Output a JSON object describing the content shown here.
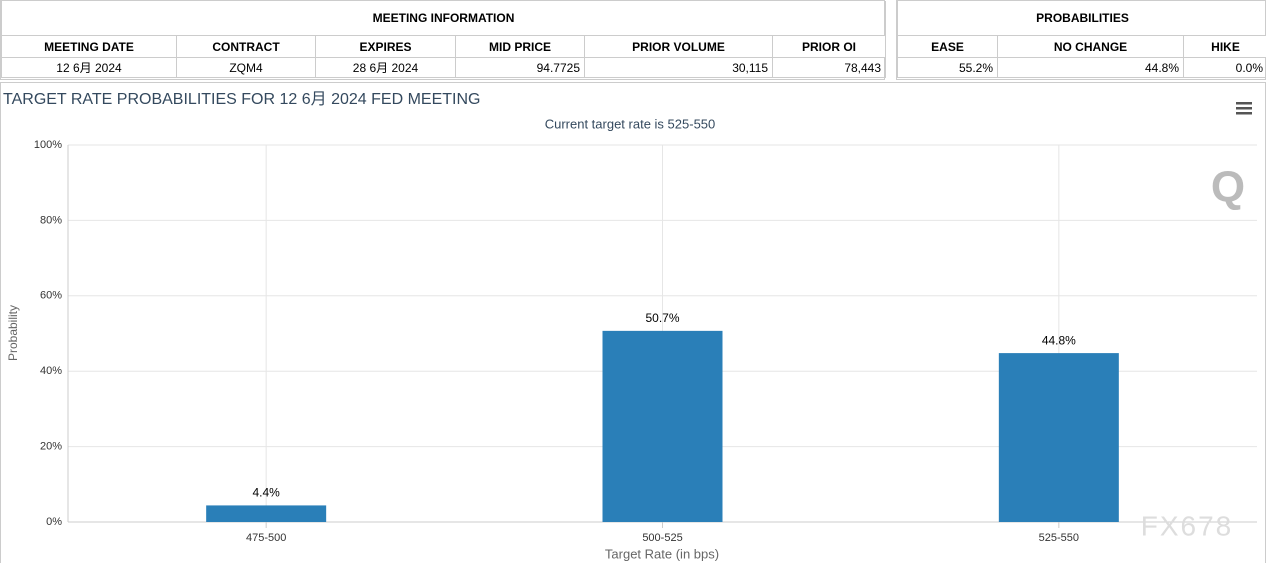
{
  "meeting_info": {
    "title": "MEETING INFORMATION",
    "headers": [
      "MEETING DATE",
      "CONTRACT",
      "EXPIRES",
      "MID PRICE",
      "PRIOR VOLUME",
      "PRIOR OI"
    ],
    "row": [
      "12 6月 2024",
      "ZQM4",
      "28 6月 2024",
      "94.7725",
      "30,115",
      "78,443"
    ]
  },
  "probabilities": {
    "title": "PROBABILITIES",
    "headers": [
      "EASE",
      "NO CHANGE",
      "HIKE"
    ],
    "row": [
      "55.2%",
      "44.8%",
      "0.0%"
    ]
  },
  "chart_data": {
    "type": "bar",
    "title": "TARGET RATE PROBABILITIES FOR 12 6月 2024 FED MEETING",
    "subtitle": "Current target rate is 525-550",
    "x_label": "Target Rate (in bps)",
    "y_label": "Probability",
    "categories": [
      "475-500",
      "500-525",
      "525-550"
    ],
    "values": [
      4.4,
      50.7,
      44.8
    ],
    "value_labels": [
      "4.4%",
      "50.7%",
      "44.8%"
    ],
    "color": "#2a7fb8",
    "ylim": [
      0,
      100
    ],
    "yticks": [
      {
        "value": 0,
        "label": "0%"
      },
      {
        "value": 20,
        "label": "20%"
      },
      {
        "value": 40,
        "label": "40%"
      },
      {
        "value": 60,
        "label": "60%"
      },
      {
        "value": 80,
        "label": "80%"
      },
      {
        "value": 100,
        "label": "100%"
      }
    ],
    "grid": true
  },
  "watermark": "FX678"
}
